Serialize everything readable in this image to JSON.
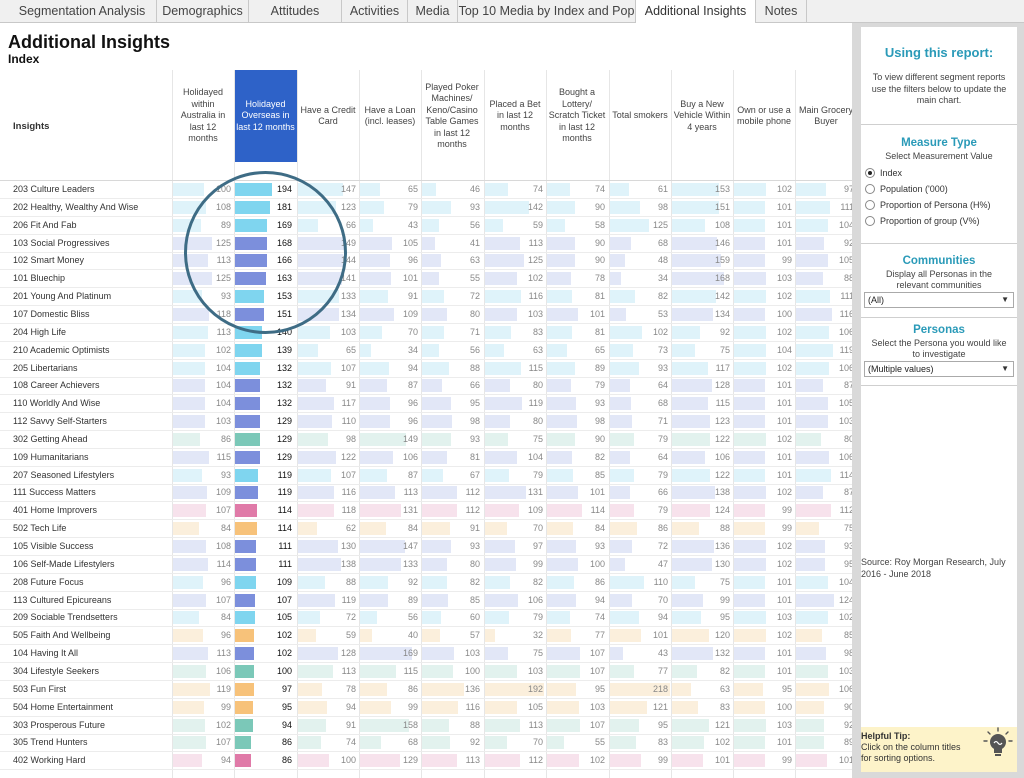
{
  "tabs": [
    "Segmentation Analysis",
    "Demographics",
    "Attitudes",
    "Activities",
    "Media",
    "Top 10 Media by Index and Pop",
    "Additional Insights",
    "Notes"
  ],
  "active_tab": "Additional Insights",
  "page": {
    "title": "Additional Insights",
    "subtitle": "Index",
    "insights_header": "Insights"
  },
  "columns": [
    "Holidayed within Australia in last 12 months",
    "Holidayed Overseas in last 12 months",
    "Have a Credit Card",
    "Have a Loan (incl. leases)",
    "Played Poker Machines/ Keno/Casino Table Games in last 12 months",
    "Placed a Bet in last 12 months",
    "Bought a Lottery/ Scratch Ticket in last 12 months",
    "Total smokers",
    "Buy a New Vehicle Within 4 years",
    "Own or use a mobile phone",
    "Main Grocery Buyer"
  ],
  "selected_column": "Holidayed Overseas in last 12 months",
  "colors": {
    "selected_header": "#2e62c8",
    "group_1": "#7fd5ef",
    "group_1_light": "#dff3fa",
    "group_2": "#7c8fdc",
    "group_2_light": "#e2e7f7",
    "group_3": "#7bc8b8",
    "group_3_light": "#e2f2ee",
    "group_4": "#e07aa8",
    "group_4_light": "#f7e2ec",
    "group_5": "#f7c27a",
    "group_5_light": "#fbefdc",
    "accent": "#2a9ab8",
    "highlight_circle": "#3e6c85",
    "tip_background": "#fdf3c9"
  },
  "rows": [
    {
      "label": "203 Culture Leaders",
      "group": 1,
      "values": [
        100,
        194,
        147,
        65,
        46,
        74,
        74,
        61,
        153,
        102,
        97
      ]
    },
    {
      "label": "202 Healthy, Wealthy And Wise",
      "group": 1,
      "values": [
        108,
        181,
        123,
        79,
        93,
        142,
        90,
        98,
        151,
        101,
        111
      ]
    },
    {
      "label": "206 Fit And Fab",
      "group": 1,
      "values": [
        89,
        169,
        66,
        43,
        56,
        59,
        58,
        125,
        108,
        101,
        104
      ]
    },
    {
      "label": "103 Social Progressives",
      "group": 2,
      "values": [
        125,
        168,
        149,
        105,
        41,
        113,
        90,
        68,
        146,
        101,
        92
      ]
    },
    {
      "label": "102 Smart Money",
      "group": 2,
      "values": [
        113,
        166,
        144,
        96,
        63,
        125,
        90,
        48,
        159,
        99,
        105
      ]
    },
    {
      "label": "101 Bluechip",
      "group": 2,
      "values": [
        125,
        163,
        141,
        101,
        55,
        102,
        78,
        34,
        168,
        103,
        88
      ]
    },
    {
      "label": "201 Young And Platinum",
      "group": 1,
      "values": [
        93,
        153,
        133,
        91,
        72,
        116,
        81,
        82,
        142,
        102,
        111
      ]
    },
    {
      "label": "107 Domestic Bliss",
      "group": 2,
      "values": [
        118,
        151,
        134,
        109,
        80,
        103,
        101,
        53,
        134,
        100,
        116
      ]
    },
    {
      "label": "204 High Life",
      "group": 1,
      "values": [
        113,
        140,
        103,
        70,
        71,
        83,
        81,
        102,
        92,
        102,
        106
      ]
    },
    {
      "label": "210 Academic Optimists",
      "group": 1,
      "values": [
        102,
        139,
        65,
        34,
        56,
        63,
        65,
        73,
        75,
        104,
        119
      ]
    },
    {
      "label": "205 Libertarians",
      "group": 1,
      "values": [
        104,
        132,
        107,
        94,
        88,
        115,
        89,
        93,
        117,
        102,
        106
      ]
    },
    {
      "label": "108 Career Achievers",
      "group": 2,
      "values": [
        104,
        132,
        91,
        87,
        66,
        80,
        79,
        64,
        128,
        101,
        87
      ]
    },
    {
      "label": "110 Worldly And Wise",
      "group": 2,
      "values": [
        104,
        132,
        117,
        96,
        95,
        119,
        93,
        68,
        115,
        101,
        105
      ]
    },
    {
      "label": "112 Savvy Self-Starters",
      "group": 2,
      "values": [
        103,
        129,
        110,
        96,
        98,
        80,
        98,
        71,
        123,
        101,
        103
      ]
    },
    {
      "label": "302 Getting Ahead",
      "group": 3,
      "values": [
        86,
        129,
        98,
        149,
        93,
        75,
        90,
        79,
        122,
        102,
        80
      ]
    },
    {
      "label": "109 Humanitarians",
      "group": 2,
      "values": [
        115,
        129,
        122,
        106,
        81,
        104,
        82,
        64,
        106,
        101,
        106
      ]
    },
    {
      "label": "207 Seasoned Lifestylers",
      "group": 1,
      "values": [
        93,
        119,
        107,
        87,
        67,
        79,
        85,
        79,
        122,
        101,
        114
      ]
    },
    {
      "label": "111 Success Matters",
      "group": 2,
      "values": [
        109,
        119,
        116,
        113,
        112,
        131,
        101,
        66,
        138,
        102,
        87
      ]
    },
    {
      "label": "401 Home Improvers",
      "group": 4,
      "values": [
        107,
        114,
        118,
        131,
        112,
        109,
        114,
        79,
        124,
        99,
        112
      ]
    },
    {
      "label": "502 Tech Life",
      "group": 5,
      "values": [
        84,
        114,
        62,
        84,
        91,
        70,
        84,
        86,
        88,
        99,
        75
      ]
    },
    {
      "label": "105 Visible Success",
      "group": 2,
      "values": [
        108,
        111,
        130,
        147,
        93,
        97,
        93,
        72,
        136,
        102,
        93
      ]
    },
    {
      "label": "106 Self-Made Lifestylers",
      "group": 2,
      "values": [
        114,
        111,
        138,
        133,
        80,
        99,
        100,
        47,
        130,
        102,
        95
      ]
    },
    {
      "label": "208 Future Focus",
      "group": 1,
      "values": [
        96,
        109,
        88,
        92,
        82,
        82,
        86,
        110,
        75,
        101,
        104
      ]
    },
    {
      "label": "113 Cultured Epicureans",
      "group": 2,
      "values": [
        107,
        107,
        119,
        89,
        85,
        106,
        94,
        70,
        99,
        101,
        124
      ]
    },
    {
      "label": "209 Sociable Trendsetters",
      "group": 1,
      "values": [
        84,
        105,
        72,
        56,
        60,
        79,
        74,
        94,
        95,
        103,
        102
      ]
    },
    {
      "label": "505 Faith And Wellbeing",
      "group": 5,
      "values": [
        96,
        102,
        59,
        40,
        57,
        32,
        77,
        101,
        120,
        102,
        85
      ]
    },
    {
      "label": "104 Having It All",
      "group": 2,
      "values": [
        113,
        102,
        128,
        169,
        103,
        75,
        107,
        43,
        132,
        101,
        98
      ]
    },
    {
      "label": "304 Lifestyle Seekers",
      "group": 3,
      "values": [
        106,
        100,
        113,
        115,
        100,
        103,
        107,
        77,
        82,
        101,
        103
      ]
    },
    {
      "label": "503 Fun First",
      "group": 5,
      "values": [
        119,
        97,
        78,
        86,
        136,
        192,
        95,
        218,
        63,
        95,
        106
      ]
    },
    {
      "label": "504 Home Entertainment",
      "group": 5,
      "values": [
        99,
        95,
        94,
        99,
        116,
        105,
        103,
        121,
        83,
        100,
        90
      ]
    },
    {
      "label": "303 Prosperous Future",
      "group": 3,
      "values": [
        102,
        94,
        91,
        158,
        88,
        113,
        107,
        95,
        121,
        103,
        92
      ]
    },
    {
      "label": "305 Trend Hunters",
      "group": 3,
      "values": [
        107,
        86,
        74,
        68,
        92,
        70,
        55,
        83,
        102,
        101,
        89
      ]
    },
    {
      "label": "402 Working Hard",
      "group": 4,
      "values": [
        94,
        86,
        100,
        129,
        113,
        112,
        102,
        99,
        101,
        99,
        101
      ]
    }
  ],
  "panel": {
    "title": "Using this report:",
    "description": "To view different segment reports use the filters below to update the main chart.",
    "measure": {
      "title": "Measure Type",
      "desc": "Select Measurement Value",
      "options": [
        "Index",
        "Population ('000)",
        "Proportion of Persona (H%)",
        "Proportion of group (V%)"
      ],
      "selected": "Index"
    },
    "communities": {
      "title": "Communities",
      "desc": "Display all Personas in the relevant communities",
      "value": "(All)"
    },
    "personas": {
      "title": "Personas",
      "desc": "Select the Persona you would like to investigate",
      "value": "(Multiple values)"
    },
    "source": "Source: Roy Morgan Research, July 2016 - June 2018",
    "tip": {
      "title": "Helpful Tip:",
      "text": "Click on the column titles for sorting options."
    }
  }
}
